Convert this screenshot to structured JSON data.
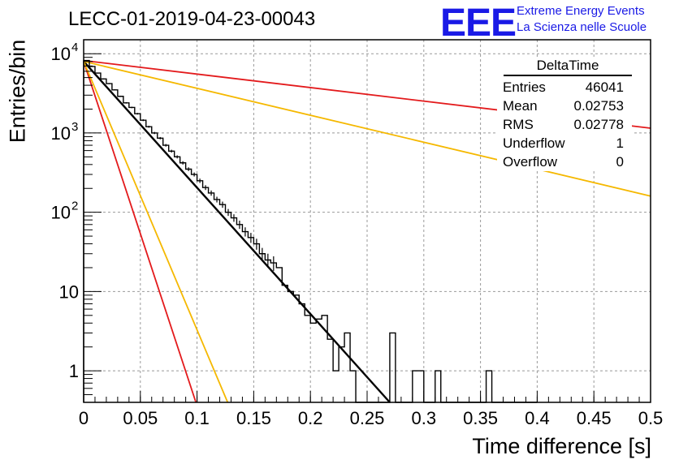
{
  "title": "LECC-01-2019-04-23-00043",
  "logo": {
    "mark": "EEE",
    "line1": "Extreme Energy Events",
    "line2": "La Scienza nelle Scuole",
    "color": "#1a1ae6"
  },
  "stats_box": {
    "title": "DeltaTime",
    "rows": [
      {
        "label": "Entries",
        "value": "46041"
      },
      {
        "label": "Mean",
        "value": "0.02753"
      },
      {
        "label": "RMS",
        "value": "0.02778"
      },
      {
        "label": "Underflow",
        "value": "1"
      },
      {
        "label": "Overflow",
        "value": "0"
      }
    ]
  },
  "chart_data": {
    "type": "line",
    "title": "LECC-01-2019-04-23-00043",
    "xlabel": "Time difference [s]",
    "ylabel": "Entries/bin",
    "xlim": [
      0,
      0.5
    ],
    "ylim": [
      0.4,
      15000
    ],
    "yscale": "log",
    "grid": true,
    "x_ticks": [
      "0",
      "0.05",
      "0.1",
      "0.15",
      "0.2",
      "0.25",
      "0.3",
      "0.35",
      "0.4",
      "0.45",
      "0.5"
    ],
    "y_ticks": [
      {
        "value": 1,
        "label": "1"
      },
      {
        "value": 10,
        "label": "10"
      },
      {
        "value": 100,
        "label": "10",
        "exp": "2"
      },
      {
        "value": 1000,
        "label": "10",
        "exp": "3"
      },
      {
        "value": 10000,
        "label": "10",
        "exp": "4"
      }
    ],
    "histogram": {
      "bin_width": 0.005,
      "color": "#000000",
      "values": [
        8200,
        6900,
        5700,
        4800,
        4200,
        3500,
        2900,
        2400,
        2100,
        1750,
        1450,
        1200,
        1000,
        860,
        700,
        590,
        500,
        420,
        350,
        300,
        250,
        205,
        175,
        145,
        125,
        100,
        85,
        70,
        57,
        48,
        40,
        30,
        25,
        23,
        20,
        12,
        10,
        9,
        7,
        5,
        4,
        4.5,
        5,
        2.5,
        1,
        2,
        3,
        1,
        0,
        0,
        0,
        0,
        0,
        0,
        3,
        0,
        0,
        0,
        1,
        1,
        0,
        0,
        1,
        0,
        0,
        0,
        0,
        0,
        0,
        0,
        0,
        1,
        0,
        0,
        0,
        0,
        0,
        0,
        0,
        0
      ]
    },
    "series": [
      {
        "color": "#000000",
        "x": [
          0.0,
          0.27
        ],
        "y": [
          8000,
          0.4
        ]
      },
      {
        "color": "#e31a1c",
        "x": [
          0.0,
          0.5
        ],
        "y": [
          8200,
          1150
        ]
      },
      {
        "color": "#e31a1c",
        "x": [
          0.0,
          0.099
        ],
        "y": [
          8000,
          0.4
        ]
      },
      {
        "color": "#f5b800",
        "x": [
          0.0,
          0.5
        ],
        "y": [
          8000,
          160
        ]
      },
      {
        "color": "#f5b800",
        "x": [
          0.0,
          0.127
        ],
        "y": [
          8000,
          0.4
        ]
      }
    ]
  }
}
